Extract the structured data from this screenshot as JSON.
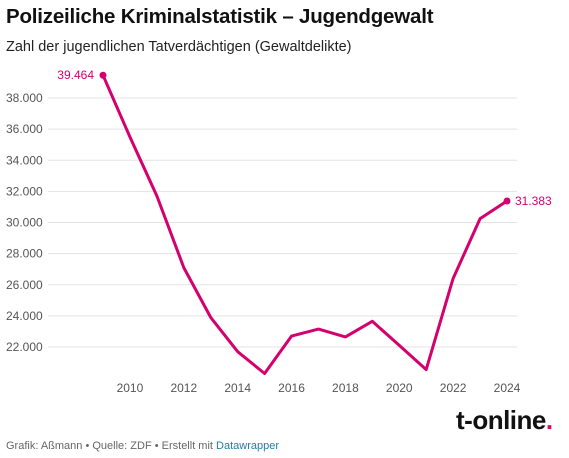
{
  "header": {
    "title": "Polizeiliche Kriminalstatistik – Jugendgewalt",
    "subtitle": "Zahl der jugendlichen Tatverdächtigen (Gewaltdelikte)"
  },
  "footer": {
    "credit": "Grafik: Aßmann • Quelle: ZDF • Erstellt mit ",
    "tool_link": "Datawrapper"
  },
  "brand": {
    "logo_text": "t-online",
    "logo_dot": "."
  },
  "colors": {
    "line": "#d4006d",
    "grid": "#e3e3e3",
    "logo_accent": "#e20074"
  },
  "chart_data": {
    "type": "line",
    "title": "Polizeiliche Kriminalstatistik – Jugendgewalt",
    "subtitle": "Zahl der jugendlichen Tatverdächtigen (Gewaltdelikte)",
    "xlabel": "",
    "ylabel": "",
    "x": [
      2009,
      2010,
      2011,
      2012,
      2013,
      2014,
      2015,
      2016,
      2017,
      2018,
      2019,
      2020,
      2021,
      2022,
      2023,
      2024
    ],
    "values": [
      39464,
      35500,
      31700,
      27100,
      23900,
      21700,
      20300,
      22700,
      23150,
      22650,
      23650,
      22100,
      20550,
      26400,
      30250,
      31383
    ],
    "x_ticks": [
      2010,
      2012,
      2014,
      2016,
      2018,
      2020,
      2022,
      2024
    ],
    "y_ticks": [
      22000,
      24000,
      26000,
      28000,
      30000,
      32000,
      34000,
      36000,
      38000
    ],
    "y_tick_labels": [
      "22.000",
      "24.000",
      "26.000",
      "28.000",
      "30.000",
      "32.000",
      "34.000",
      "36.000",
      "38.000"
    ],
    "x_tick_labels": [
      "2010",
      "2012",
      "2014",
      "2016",
      "2018",
      "2020",
      "2022",
      "2024"
    ],
    "xlim": [
      2009,
      2024
    ],
    "ylim": [
      20000,
      40000
    ],
    "grid": true,
    "annotations": [
      {
        "index": 0,
        "text": "39.464",
        "side": "left"
      },
      {
        "index": 15,
        "text": "31.383",
        "side": "right"
      }
    ]
  }
}
